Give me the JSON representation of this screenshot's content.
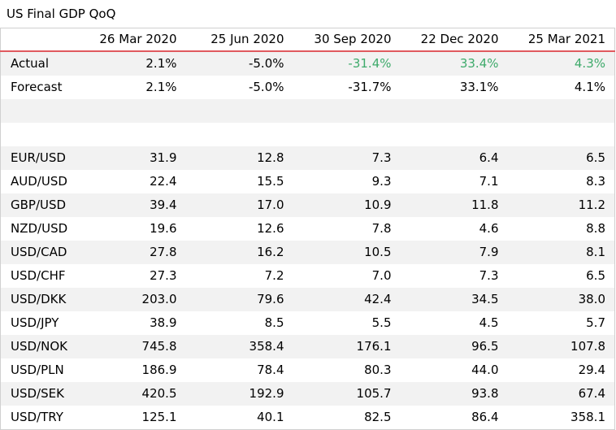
{
  "title": "US Final GDP QoQ",
  "columns": [
    "26 Mar 2020",
    "25 Jun 2020",
    "30 Sep 2020",
    "22 Dec 2020",
    "25 Mar 2021"
  ],
  "colors": {
    "header_rule": "#e05a5f",
    "positive": "#3eaa6b",
    "band": "#f2f2f2"
  },
  "rows": [
    {
      "label": "Actual",
      "values": [
        "2.1%",
        "-5.0%",
        "-31.4%",
        "33.4%",
        "4.3%"
      ],
      "highlight": [
        false,
        false,
        true,
        true,
        true
      ]
    },
    {
      "label": "Forecast",
      "values": [
        "2.1%",
        "-5.0%",
        "-31.7%",
        "33.1%",
        "4.1%"
      ]
    },
    {
      "label": "",
      "values": [
        "",
        "",
        "",
        "",
        ""
      ]
    },
    {
      "label": "",
      "values": [
        "",
        "",
        "",
        "",
        ""
      ]
    },
    {
      "label": "EUR/USD",
      "values": [
        "31.9",
        "12.8",
        "7.3",
        "6.4",
        "6.5"
      ]
    },
    {
      "label": "AUD/USD",
      "values": [
        "22.4",
        "15.5",
        "9.3",
        "7.1",
        "8.3"
      ]
    },
    {
      "label": "GBP/USD",
      "values": [
        "39.4",
        "17.0",
        "10.9",
        "11.8",
        "11.2"
      ]
    },
    {
      "label": "NZD/USD",
      "values": [
        "19.6",
        "12.6",
        "7.8",
        "4.6",
        "8.8"
      ]
    },
    {
      "label": "USD/CAD",
      "values": [
        "27.8",
        "16.2",
        "10.5",
        "7.9",
        "8.1"
      ]
    },
    {
      "label": "USD/CHF",
      "values": [
        "27.3",
        "7.2",
        "7.0",
        "7.3",
        "6.5"
      ]
    },
    {
      "label": "USD/DKK",
      "values": [
        "203.0",
        "79.6",
        "42.4",
        "34.5",
        "38.0"
      ]
    },
    {
      "label": "USD/JPY",
      "values": [
        "38.9",
        "8.5",
        "5.5",
        "4.5",
        "5.7"
      ]
    },
    {
      "label": "USD/NOK",
      "values": [
        "745.8",
        "358.4",
        "176.1",
        "96.5",
        "107.8"
      ]
    },
    {
      "label": "USD/PLN",
      "values": [
        "186.9",
        "78.4",
        "80.3",
        "44.0",
        "29.4"
      ]
    },
    {
      "label": "USD/SEK",
      "values": [
        "420.5",
        "192.9",
        "105.7",
        "93.8",
        "67.4"
      ]
    },
    {
      "label": "USD/TRY",
      "values": [
        "125.1",
        "40.1",
        "82.5",
        "86.4",
        "358.1"
      ]
    }
  ]
}
